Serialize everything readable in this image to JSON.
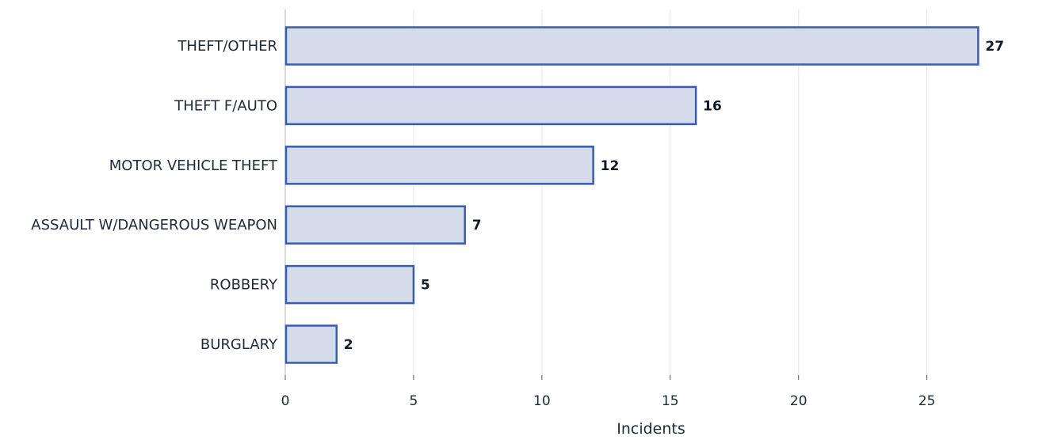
{
  "chart_data": {
    "type": "bar",
    "orientation": "horizontal",
    "categories": [
      "THEFT/OTHER",
      "THEFT F/AUTO",
      "MOTOR VEHICLE THEFT",
      "ASSAULT W/DANGEROUS WEAPON",
      "ROBBERY",
      "BURGLARY"
    ],
    "values": [
      27,
      16,
      12,
      7,
      5,
      2
    ],
    "xlabel": "Incidents",
    "ylabel": "",
    "xlim": [
      0,
      28.5
    ],
    "xticks": [
      0,
      5,
      10,
      15,
      20,
      25
    ],
    "grid": "vertical",
    "data_labels": true,
    "colors": {
      "bar_fill": "#d4dcec",
      "bar_stroke": "#3a5bb0",
      "grid": "#e5e7eb",
      "axis": "#cfcfcf"
    }
  }
}
